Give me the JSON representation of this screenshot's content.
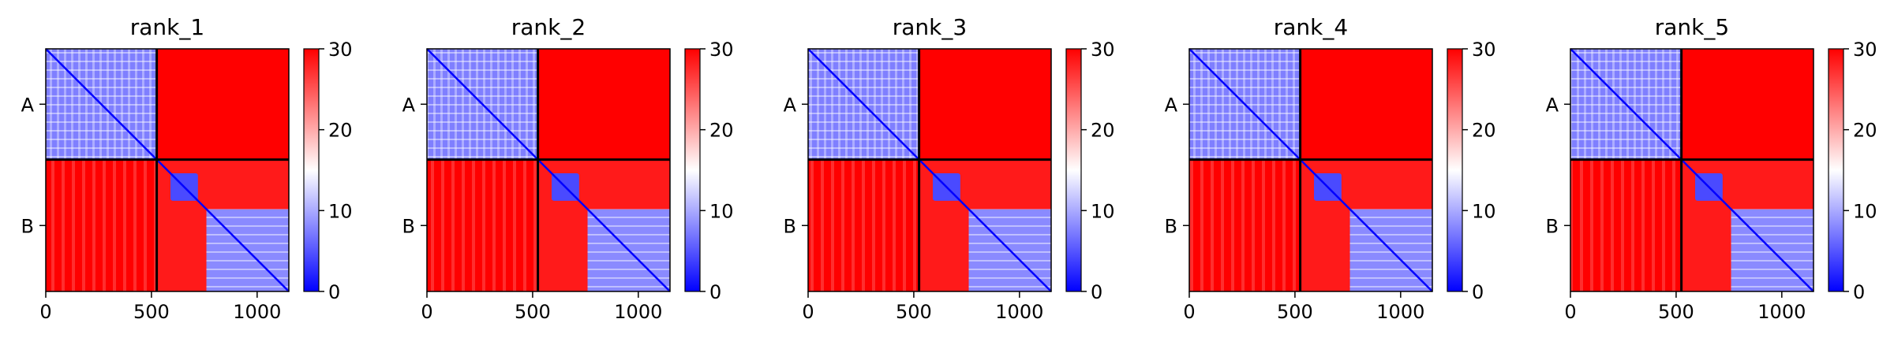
{
  "chart_data": {
    "type": "heatmap",
    "colormap": [
      "#0000ff",
      "#ffffff",
      "#ff0000"
    ],
    "color_range": [
      0,
      30
    ],
    "colorbar_ticks": [
      0,
      10,
      20,
      30
    ],
    "x_range": [
      0,
      1150
    ],
    "x_ticks": [
      0,
      500,
      1000
    ],
    "chain_boundary": 525,
    "chain_labels": [
      "A",
      "B"
    ],
    "panels": [
      {
        "title": "rank_1"
      },
      {
        "title": "rank_2"
      },
      {
        "title": "rank_3"
      },
      {
        "title": "rank_4"
      },
      {
        "title": "rank_5"
      }
    ]
  }
}
